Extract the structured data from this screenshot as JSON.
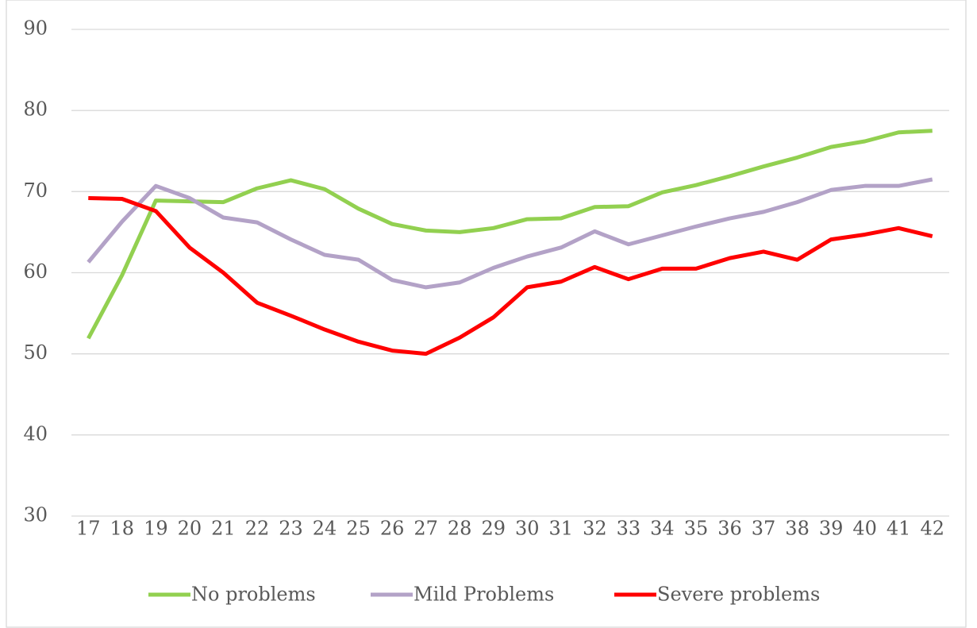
{
  "chart_data": {
    "type": "line",
    "categories": [
      "17",
      "18",
      "19",
      "20",
      "21",
      "22",
      "23",
      "24",
      "25",
      "26",
      "27",
      "28",
      "29",
      "30",
      "31",
      "32",
      "33",
      "34",
      "35",
      "36",
      "37",
      "38",
      "39",
      "40",
      "41",
      "42"
    ],
    "series": [
      {
        "name": "No problems",
        "color": "#92d050",
        "values": [
          51.9,
          59.7,
          68.9,
          68.8,
          68.7,
          70.4,
          71.4,
          70.3,
          67.9,
          66.0,
          65.2,
          65.0,
          65.5,
          66.6,
          66.7,
          68.1,
          68.2,
          69.9,
          70.8,
          71.9,
          73.1,
          74.2,
          75.5,
          76.2,
          77.3,
          77.5
        ]
      },
      {
        "name": "Mild Problems",
        "color": "#b3a2c7",
        "values": [
          61.3,
          66.3,
          70.7,
          69.2,
          66.8,
          66.2,
          64.1,
          62.2,
          61.6,
          59.1,
          58.2,
          58.8,
          60.6,
          62.0,
          63.1,
          65.1,
          63.5,
          64.6,
          65.7,
          66.7,
          67.5,
          68.7,
          70.2,
          70.7,
          70.7,
          71.5
        ]
      },
      {
        "name": "Severe problems",
        "color": "#ff0000",
        "values": [
          69.2,
          69.1,
          67.6,
          63.1,
          60.0,
          56.3,
          54.7,
          53.0,
          51.5,
          50.4,
          50.0,
          52.0,
          54.5,
          58.2,
          58.9,
          60.7,
          59.2,
          60.5,
          60.5,
          61.8,
          62.6,
          61.6,
          64.1,
          64.7,
          65.5,
          64.5
        ]
      }
    ],
    "ylim": [
      30,
      90
    ],
    "yticks": [
      30,
      40,
      50,
      60,
      70,
      80,
      90
    ],
    "grid": true,
    "legend": "bottom"
  }
}
